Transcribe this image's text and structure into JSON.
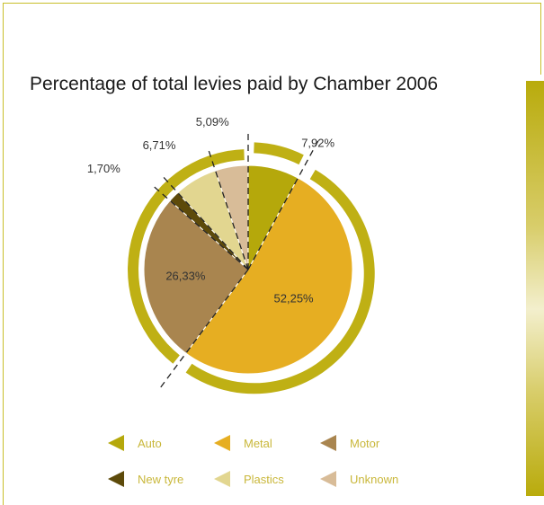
{
  "chart_data": {
    "type": "pie",
    "title": "Percentage of total levies paid by Chamber 2006",
    "slices": [
      {
        "name": "Auto",
        "value": 7.92,
        "label": "7,92%",
        "color": "#b5a80b"
      },
      {
        "name": "Metal",
        "value": 52.25,
        "label": "52,25%",
        "color": "#e6ae22"
      },
      {
        "name": "Motor",
        "value": 26.33,
        "label": "26,33%",
        "color": "#a9854f"
      },
      {
        "name": "New tyre",
        "value": 1.7,
        "label": "1,70%",
        "color": "#5d4a0a"
      },
      {
        "name": "Plastics",
        "value": 6.71,
        "label": "6,71%",
        "color": "#e2d690"
      },
      {
        "name": "Unknown",
        "value": 5.09,
        "label": "5,09%",
        "color": "#d8bc98"
      }
    ],
    "legend_position": "bottom"
  },
  "colors": {
    "ring": "#bfb014",
    "frame": "#c8bf2a",
    "legend_text": "#c9b73a"
  }
}
